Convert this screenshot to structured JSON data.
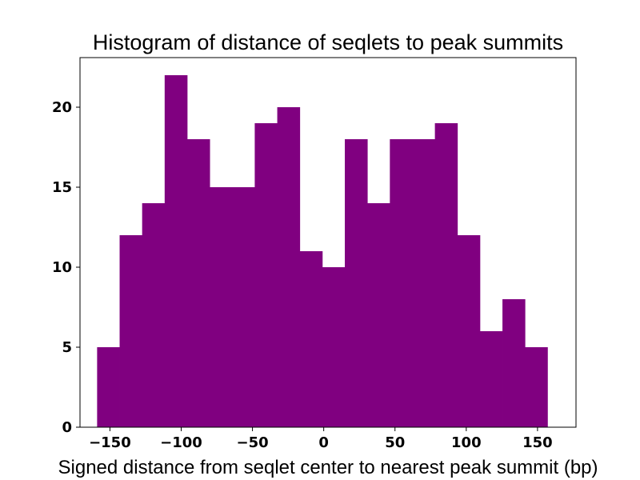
{
  "chart_data": {
    "type": "bar",
    "title": "Histogram of distance of seqlets to peak summits",
    "xlabel": "Signed distance from seqlet center to nearest peak summit (bp)",
    "ylabel": "",
    "bar_color": "#800080",
    "xlim": [
      -171,
      177
    ],
    "ylim": [
      0,
      23.1
    ],
    "bin_edges": [
      -159,
      -143.2,
      -127.4,
      -111.6,
      -95.8,
      -80,
      -64.2,
      -48.4,
      -32.6,
      -16.8,
      -1,
      14.8,
      30.6,
      46.4,
      62.2,
      78,
      93.8,
      109.6,
      125.4,
      141.2,
      157
    ],
    "values": [
      5,
      12,
      14,
      22,
      18,
      15,
      15,
      19,
      20,
      11,
      10,
      18,
      14,
      18,
      18,
      19,
      12,
      6,
      8,
      5
    ],
    "xticks": [
      -150,
      -100,
      -50,
      0,
      50,
      100,
      150
    ],
    "xtick_labels": [
      "−150",
      "−100",
      "−50",
      "0",
      "50",
      "100",
      "150"
    ],
    "yticks": [
      0,
      5,
      10,
      15,
      20
    ],
    "ytick_labels": [
      "0",
      "5",
      "10",
      "15",
      "20"
    ],
    "grid": false
  }
}
